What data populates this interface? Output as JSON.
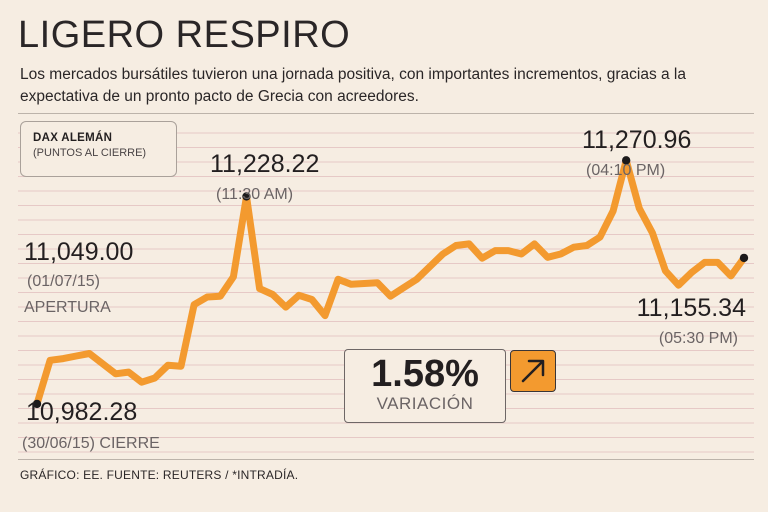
{
  "header": {
    "title": "LIGERO RESPIRO",
    "subtitle": "Los mercados bursátiles tuvieron una jornada positiva, con importantes incrementos, gracias a la expectativa de un pronto pacto de Grecia con acreedores."
  },
  "index_box": {
    "name": "DAX ALEMÁN",
    "unit": "(PUNTOS AL CIERRE)"
  },
  "variation": {
    "value": "1.58%",
    "label": "VARIACIÓN",
    "direction_icon": "arrow-up-right-icon"
  },
  "footer": {
    "source": "GRÁFICO: EE. FUENTE: REUTERS / *INTRADÍA."
  },
  "colors": {
    "line": "#f39a2f",
    "background": "#f6ede2",
    "grid": "#e6c9c6",
    "text": "#231f20"
  },
  "chart_data": {
    "type": "line",
    "title": "DAX ALEMÁN",
    "ylabel": "(PUNTOS AL CIERRE)",
    "ylim": [
      10930,
      11320
    ],
    "series": [
      {
        "name": "DAX",
        "values": [
          10982.28,
          11034,
          11036,
          11039,
          11042,
          11030,
          11018,
          11020,
          11008,
          11013,
          11028,
          11027,
          11100,
          11109,
          11110,
          11133,
          11228.22,
          11119,
          11112,
          11097,
          11111,
          11106,
          11087,
          11130,
          11124,
          11125,
          11126,
          11110,
          11120,
          11130,
          11145,
          11160,
          11170,
          11172,
          11155,
          11164,
          11164,
          11160,
          11172,
          11156,
          11160,
          11168,
          11170,
          11180,
          11211,
          11270.96,
          11214,
          11185,
          11140,
          11123,
          11138,
          11150,
          11150,
          11134,
          11155.34
        ]
      }
    ],
    "annotations": [
      {
        "index": 0,
        "value": "10,982.28",
        "sub": "(30/06/15) CIERRE",
        "label": ""
      },
      {
        "index": 0,
        "value": "11,049.00",
        "sub": "(01/07/15)",
        "label": "APERTURA"
      },
      {
        "index": 16,
        "value": "11,228.22",
        "sub": "(11:30 AM)",
        "label": ""
      },
      {
        "index": 45,
        "value": "11,270.96",
        "sub": "(04:10 PM)",
        "label": ""
      },
      {
        "index": 54,
        "value": "11,155.34",
        "sub": "(05:30 PM)",
        "label": ""
      }
    ],
    "grid": true
  }
}
